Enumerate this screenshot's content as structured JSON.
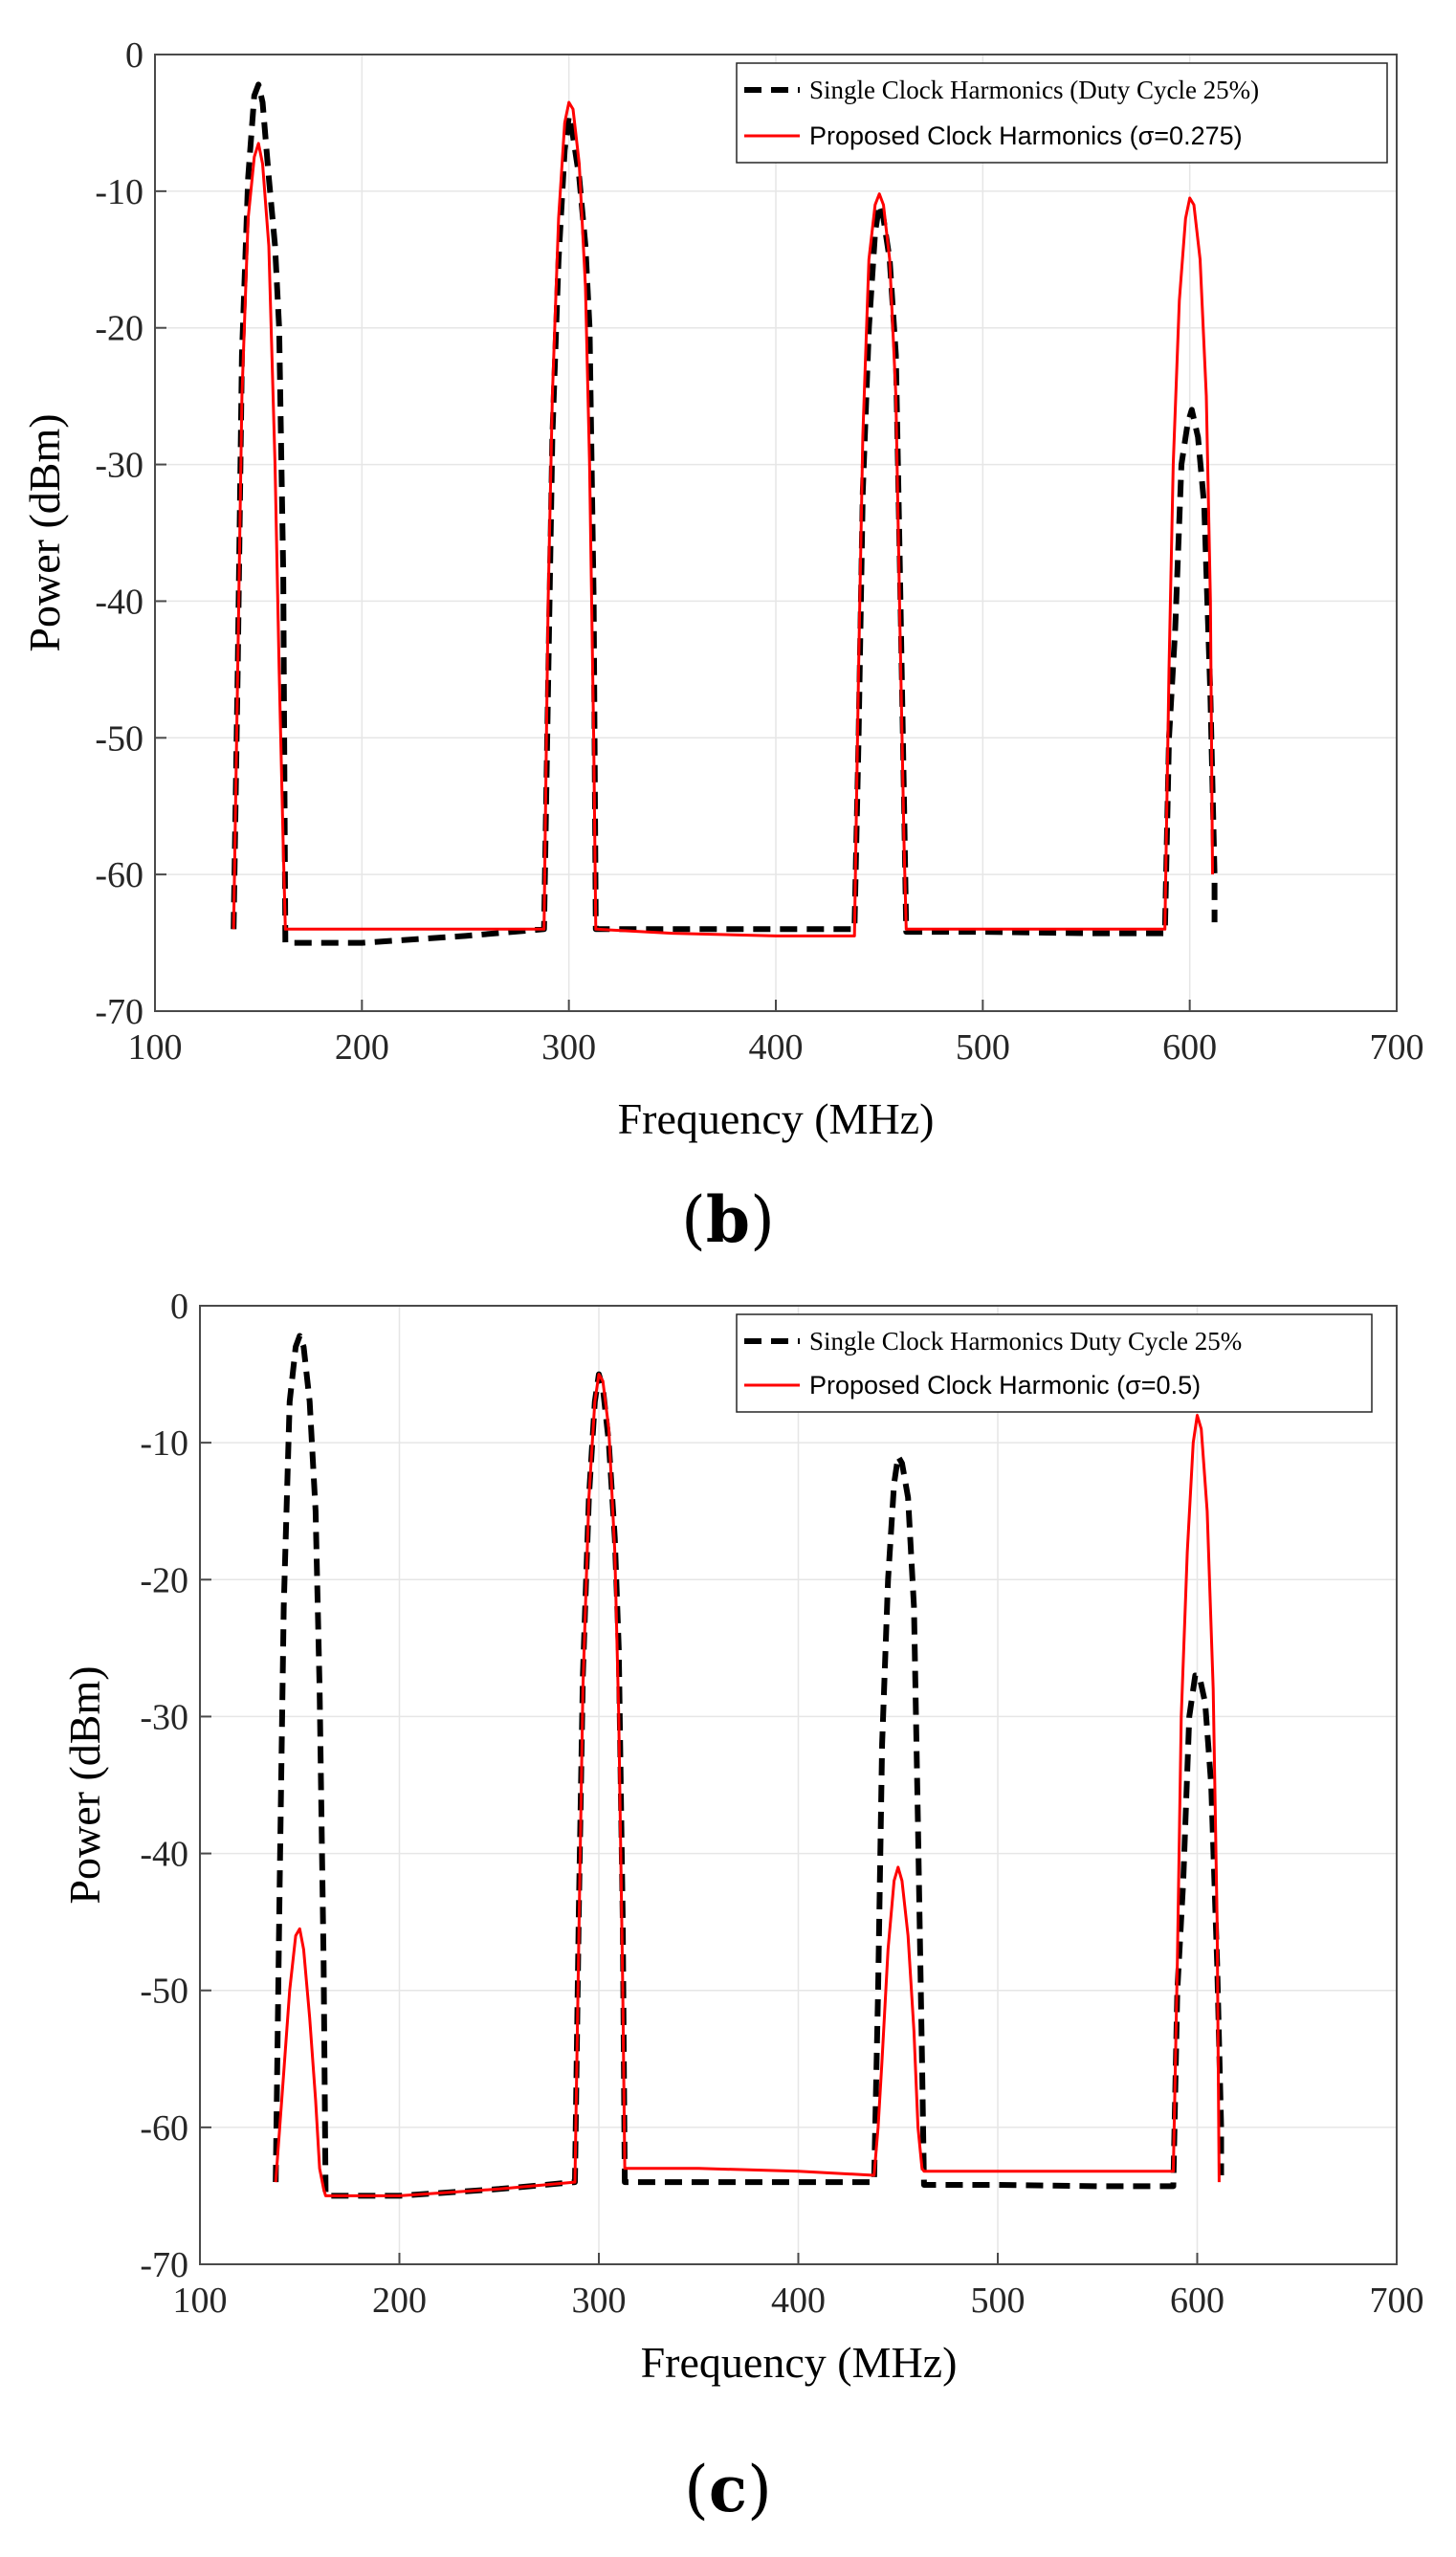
{
  "chart_data": [
    {
      "type": "line",
      "panel_label": "b",
      "xlabel": "Frequency (MHz)",
      "ylabel": "Power (dBm)",
      "xlim": [
        100,
        700
      ],
      "ylim": [
        -70,
        0
      ],
      "xticks": [
        100,
        200,
        300,
        400,
        500,
        600,
        700
      ],
      "yticks": [
        0,
        -10,
        -20,
        -30,
        -40,
        -50,
        -60,
        -70
      ],
      "grid": true,
      "legend_position": "top-right",
      "series": [
        {
          "name": "Single Clock Harmonics (Duty Cycle 25%)",
          "color": "#000000",
          "style": "dashed",
          "x": [
            138,
            140,
            142,
            145,
            148,
            150,
            152,
            155,
            158,
            160,
            162,
            163,
            200,
            250,
            288,
            290,
            292,
            295,
            298,
            300,
            302,
            305,
            308,
            310,
            312,
            313,
            350,
            400,
            438,
            440,
            442,
            445,
            448,
            450,
            452,
            455,
            458,
            460,
            462,
            463,
            500,
            550,
            588,
            590,
            593,
            596,
            599,
            601,
            604,
            607,
            610,
            612,
            612
          ],
          "y": [
            -64,
            -45,
            -22,
            -9,
            -3,
            -2.2,
            -3.5,
            -9,
            -14,
            -20,
            -38,
            -65,
            -65,
            -64.5,
            -64,
            -46,
            -28,
            -15,
            -7,
            -4.5,
            -6,
            -9,
            -14,
            -20,
            -40,
            -64,
            -64,
            -64,
            -64,
            -50,
            -32,
            -20,
            -13,
            -11,
            -12,
            -15,
            -22,
            -38,
            -55,
            -64.2,
            -64.2,
            -64.3,
            -64.3,
            -50,
            -42,
            -30,
            -27,
            -26,
            -28,
            -33,
            -47,
            -60,
            -63.5
          ]
        },
        {
          "name": "Proposed Clock Harmonics (σ=0.275)",
          "color": "#ff0000",
          "style": "solid",
          "x": [
            138,
            140,
            142,
            145,
            148,
            150,
            152,
            155,
            158,
            160,
            162,
            163,
            200,
            250,
            288,
            290,
            292,
            295,
            298,
            300,
            302,
            305,
            308,
            310,
            312,
            313,
            350,
            400,
            438,
            440,
            442,
            445,
            448,
            450,
            452,
            455,
            458,
            460,
            462,
            463,
            500,
            550,
            588,
            590,
            592,
            595,
            598,
            600,
            602,
            605,
            608,
            610,
            611
          ],
          "y": [
            -64,
            -45,
            -25,
            -12,
            -7.5,
            -6.5,
            -8,
            -14,
            -30,
            -45,
            -58,
            -64,
            -64,
            -64,
            -64,
            -40,
            -25,
            -12,
            -5,
            -3.5,
            -4,
            -8,
            -17,
            -30,
            -50,
            -64,
            -64.3,
            -64.5,
            -64.5,
            -45,
            -28,
            -15,
            -11,
            -10.2,
            -11,
            -15,
            -25,
            -42,
            -58,
            -64,
            -64,
            -64,
            -64,
            -45,
            -30,
            -18,
            -12,
            -10.5,
            -11,
            -15,
            -25,
            -40,
            -60
          ]
        }
      ]
    },
    {
      "type": "line",
      "panel_label": "c",
      "xlabel": "Frequency (MHz)",
      "ylabel": "Power (dBm)",
      "xlim": [
        100,
        700
      ],
      "ylim": [
        -70,
        0
      ],
      "xticks": [
        100,
        200,
        300,
        400,
        500,
        600,
        700
      ],
      "yticks": [
        0,
        -10,
        -20,
        -30,
        -40,
        -50,
        -60,
        -70
      ],
      "grid": true,
      "legend_position": "top-right",
      "series": [
        {
          "name": "Single Clock Harmonics Duty Cycle 25%",
          "color": "#000000",
          "style": "dashed",
          "x": [
            138,
            140,
            142,
            145,
            148,
            150,
            152,
            155,
            158,
            160,
            162,
            163,
            200,
            250,
            288,
            290,
            292,
            295,
            298,
            300,
            302,
            305,
            308,
            310,
            312,
            313,
            350,
            400,
            438,
            440,
            442,
            445,
            448,
            450,
            452,
            455,
            458,
            460,
            462,
            463,
            500,
            550,
            588,
            590,
            593,
            596,
            599,
            601,
            604,
            607,
            610,
            612,
            612
          ],
          "y": [
            -64,
            -42,
            -22,
            -7,
            -3,
            -2.2,
            -3,
            -7,
            -15,
            -28,
            -48,
            -65,
            -65,
            -64.5,
            -64,
            -44,
            -27,
            -14,
            -7,
            -5,
            -6,
            -10,
            -17,
            -25,
            -45,
            -64,
            -64,
            -64,
            -64,
            -50,
            -32,
            -20,
            -13,
            -11,
            -11.5,
            -14,
            -22,
            -38,
            -55,
            -64.2,
            -64.2,
            -64.3,
            -64.3,
            -50,
            -42,
            -30,
            -27,
            -27,
            -29,
            -35,
            -48,
            -60,
            -63.5
          ]
        },
        {
          "name": "Proposed Clock Harmonic (σ=0.5)",
          "color": "#ff0000",
          "style": "solid",
          "x": [
            138,
            140,
            142,
            145,
            148,
            150,
            152,
            155,
            158,
            160,
            162,
            163,
            200,
            250,
            288,
            290,
            292,
            295,
            298,
            300,
            302,
            305,
            308,
            310,
            312,
            313,
            350,
            400,
            438,
            440,
            442,
            445,
            448,
            450,
            452,
            455,
            458,
            460,
            462,
            463,
            500,
            550,
            588,
            590,
            592,
            595,
            598,
            600,
            602,
            605,
            608,
            610,
            611
          ],
          "y": [
            -64,
            -60,
            -56,
            -50,
            -46,
            -45.5,
            -47,
            -52,
            -58,
            -63,
            -64.5,
            -65,
            -65,
            -64.5,
            -64,
            -46,
            -28,
            -14,
            -7,
            -5,
            -5.5,
            -9,
            -18,
            -30,
            -50,
            -63,
            -63,
            -63.2,
            -63.5,
            -60,
            -55,
            -47,
            -42,
            -41,
            -42,
            -46,
            -53,
            -60,
            -63,
            -63.2,
            -63.2,
            -63.2,
            -63.2,
            -48,
            -30,
            -18,
            -10,
            -8,
            -9,
            -15,
            -28,
            -45,
            -64
          ]
        }
      ]
    }
  ]
}
